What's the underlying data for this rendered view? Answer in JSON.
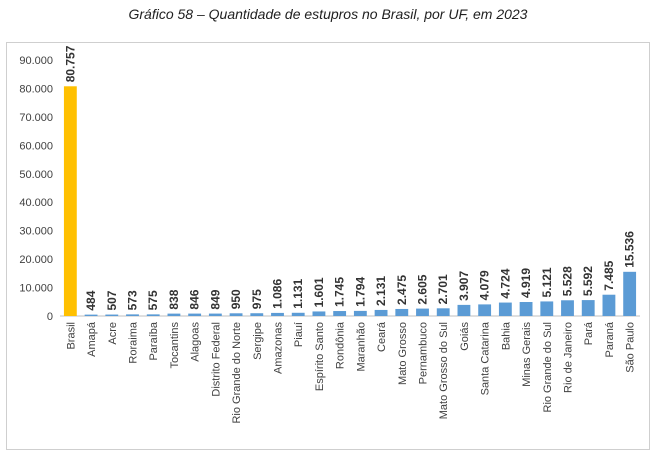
{
  "chart_data": {
    "type": "bar",
    "title": "Gráfico 58 – Quantidade de estupros no Brasil, por UF, em 2023",
    "xlabel": "",
    "ylabel": "",
    "ylim": [
      0,
      90000
    ],
    "yticks": [
      "0",
      "10.000",
      "20.000",
      "30.000",
      "40.000",
      "50.000",
      "60.000",
      "70.000",
      "80.000",
      "90.000"
    ],
    "grid": false,
    "colors": {
      "highlight": "#FFC000",
      "default": "#5B9BD5"
    },
    "categories": [
      "Brasil",
      "Amapá",
      "Acre",
      "Roraima",
      "Paraíba",
      "Tocantins",
      "Alagoas",
      "Distrito Federal",
      "Rio Grande do Norte",
      "Sergipe",
      "Amazonas",
      "Piauí",
      "Espírito Santo",
      "Rondônia",
      "Maranhão",
      "Ceará",
      "Mato Grosso",
      "Pernambuco",
      "Mato Grosso do Sul",
      "Goiás",
      "Santa Catarina",
      "Bahia",
      "Minas Gerais",
      "Rio Grande do Sul",
      "Rio de Janeiro",
      "Pará",
      "Paraná",
      "São Paulo"
    ],
    "values": [
      80757,
      484,
      507,
      573,
      575,
      838,
      846,
      849,
      950,
      975,
      1086,
      1131,
      1601,
      1745,
      1794,
      2131,
      2475,
      2605,
      2701,
      3907,
      4079,
      4724,
      4919,
      5121,
      5528,
      5592,
      7485,
      15536
    ],
    "data_labels": [
      "80.757",
      "484",
      "507",
      "573",
      "575",
      "838",
      "846",
      "849",
      "950",
      "975",
      "1.086",
      "1.131",
      "1.601",
      "1.745",
      "1.794",
      "2.131",
      "2.475",
      "2.605",
      "2.701",
      "3.907",
      "4.079",
      "4.724",
      "4.919",
      "5.121",
      "5.528",
      "5.592",
      "7.485",
      "15.536"
    ]
  }
}
